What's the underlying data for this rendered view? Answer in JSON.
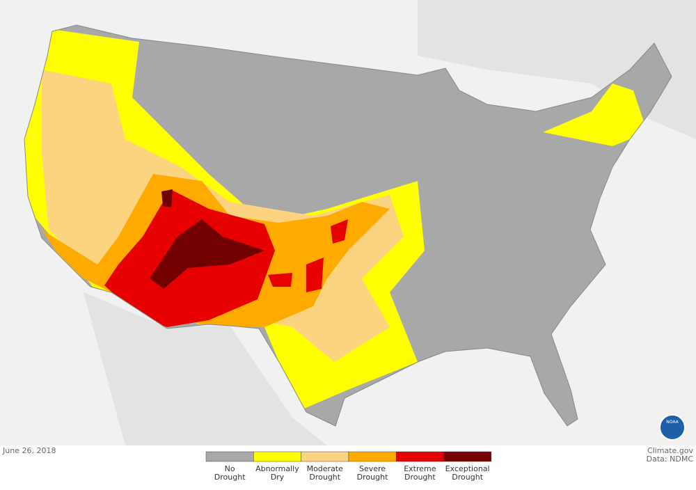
{
  "map": {
    "date": "June 26, 2018",
    "credit": [
      "Climate.gov",
      "Data: NDMC"
    ],
    "logo_text": "NOAA",
    "legend": [
      {
        "label": [
          "No",
          "Drought"
        ],
        "color": "#a8a8a8"
      },
      {
        "label": [
          "Abnormally",
          "Dry"
        ],
        "color": "#ffff00"
      },
      {
        "label": [
          "Moderate",
          "Drought"
        ],
        "color": "#fcd37f"
      },
      {
        "label": [
          "Severe",
          "Drought"
        ],
        "color": "#ffaa00"
      },
      {
        "label": [
          "Extreme",
          "Drought"
        ],
        "color": "#e60000"
      },
      {
        "label": [
          "Exceptional",
          "Drought"
        ],
        "color": "#730000"
      }
    ]
  }
}
